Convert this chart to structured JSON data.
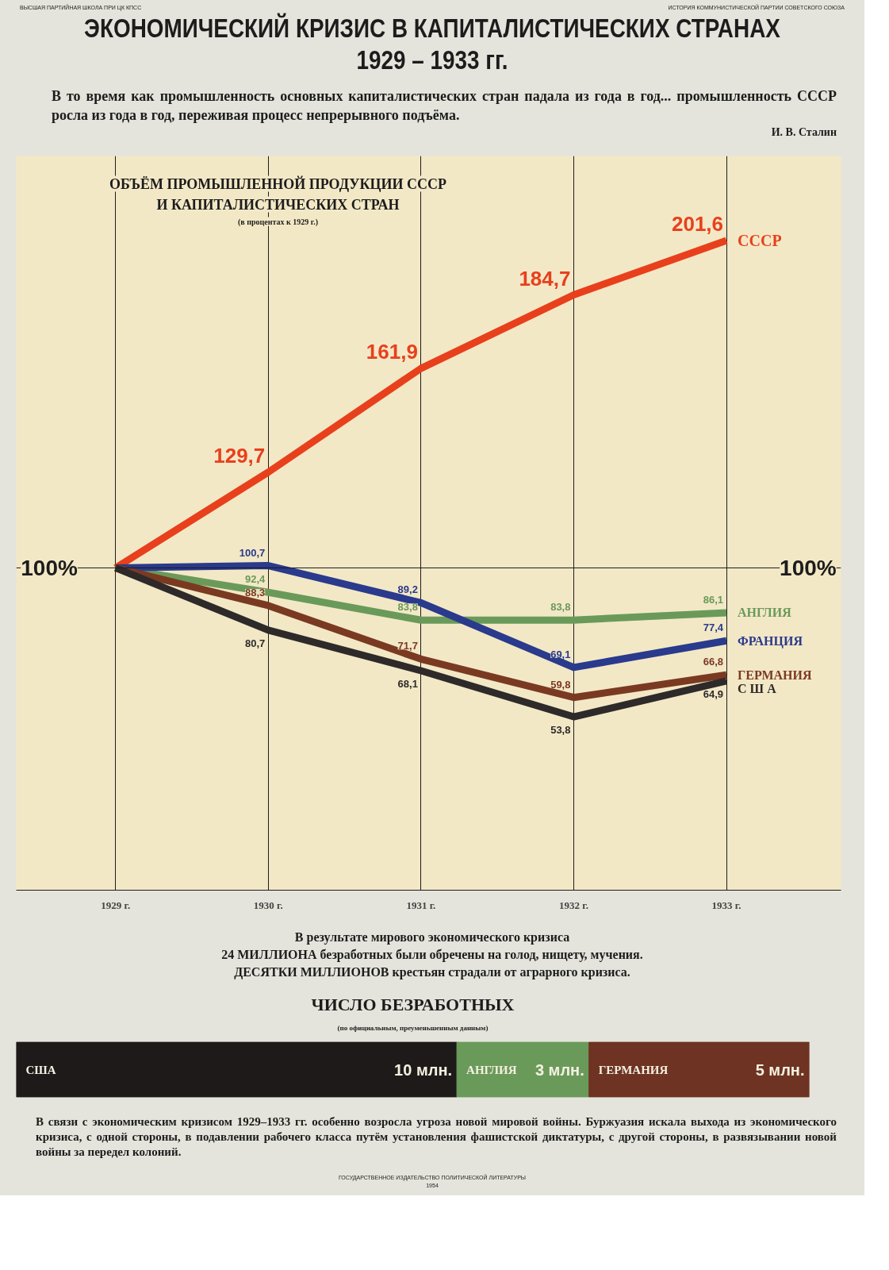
{
  "chart_data": [
    {
      "type": "line",
      "title": "ЭКОНОМИЧЕСКИЙ КРИЗИС В КАПИТАЛИСТИЧЕСКИХ СТРАНАХ\n1929 – 1933 гг.",
      "subtitle": "В то время как промышленность основных капиталистических стран падала из года в год... промышленность СССР росла из года в год, переживая процесс непрерывного подъёма.",
      "annotations": [
        "ВЫСШАЯ ПАРТИЙНАЯ ШКОЛА ПРИ ЦК КПСС",
        "ИСТОРИЯ КОММУНИСТИЧЕСКОЙ ПАРТИИ СОВЕТСКОГО СОЮЗА",
        "И. В. Сталин",
        "ОБЪЁМ ПРОМЫШЛЕННОЙ ПРОДУКЦИИ СССР\nИ КАПИТАЛИСТИЧЕСКИХ СТРАН",
        "(в процентах к 1929 г.)"
      ],
      "categories": [
        "1929 г.",
        "1930 г.",
        "1931 г.",
        "1932 г.",
        "1933 г."
      ],
      "series": [
        {
          "name": "СССР",
          "color": "#e8401c",
          "values": [
            100,
            129.7,
            161.9,
            184.7,
            201.6
          ],
          "value_labels": [
            null,
            "129,7",
            "161,9",
            "184,7",
            "201,6"
          ]
        },
        {
          "name": "АНГЛИЯ",
          "color": "#6a9a5a",
          "values": [
            100,
            92.4,
            83.8,
            83.8,
            86.1
          ],
          "value_labels": [
            null,
            "92,4",
            "83,8",
            "83,8",
            "86,1"
          ]
        },
        {
          "name": "ФРАНЦИЯ",
          "color": "#2a3a8c",
          "values": [
            100,
            100.7,
            89.2,
            69.1,
            77.4
          ],
          "value_labels": [
            null,
            "100,7",
            "89,2",
            "69,1",
            "77,4"
          ]
        },
        {
          "name": "ГЕРМАНИЯ",
          "color": "#7a3a22",
          "values": [
            100,
            88.3,
            71.7,
            59.8,
            66.8
          ],
          "value_labels": [
            null,
            "88,3",
            "71,7",
            "59,8",
            "66,8"
          ]
        },
        {
          "name": "С Ш А",
          "color": "#2e2a2a",
          "values": [
            100,
            80.7,
            68.1,
            53.8,
            64.9
          ],
          "value_labels": [
            null,
            "80,7",
            "68,1",
            "53,8",
            "64,9"
          ]
        }
      ],
      "ref_lines": [
        {
          "axis": "y",
          "value": 100,
          "label": "100%",
          "color": "#1c1c1c"
        }
      ],
      "grid": "x",
      "marker": "none",
      "line_style": "solid"
    },
    {
      "type": "bar",
      "orientation": "horizontal",
      "stacked": true,
      "title": "ЧИСЛО БЕЗРАБОТНЫХ",
      "subtitle": "(по официальным, преуменьшенным данным)",
      "annotations": [
        "В результате мирового экономического кризиса\n24 МИЛЛИОНА безработных были обречены на голод, нищету, мучения.\nДЕСЯТКИ МИЛЛИОНОВ крестьян страдали от аграрного кризиса.",
        "В связи с экономическим кризисом 1929–1933 гг. особенно возросла угроза новой мировой войны. Буржуазия искала выхода из экономического кризиса, с одной стороны, в подавлении рабочего класса путём установления фашистской диктатуры, с другой стороны, в развязывании новой войны за передел колоний.",
        "ГОСУДАРСТВЕННОЕ ИЗДАТЕЛЬСТВО ПОЛИТИЧЕСКОЙ ЛИТЕРАТУРЫ\n1954"
      ],
      "categories": [
        null
      ],
      "series": [
        {
          "name": "США",
          "color": "#1e1a1a",
          "values": [
            10
          ],
          "value_labels": [
            "10 млн."
          ]
        },
        {
          "name": "АНГЛИЯ",
          "color": "#6a9a5a",
          "values": [
            3
          ],
          "value_labels": [
            "3 млн."
          ]
        },
        {
          "name": "ГЕРМАНИЯ",
          "color": "#6e3322",
          "values": [
            5
          ],
          "value_labels": [
            "5 млн."
          ]
        }
      ],
      "grid": false
    }
  ]
}
